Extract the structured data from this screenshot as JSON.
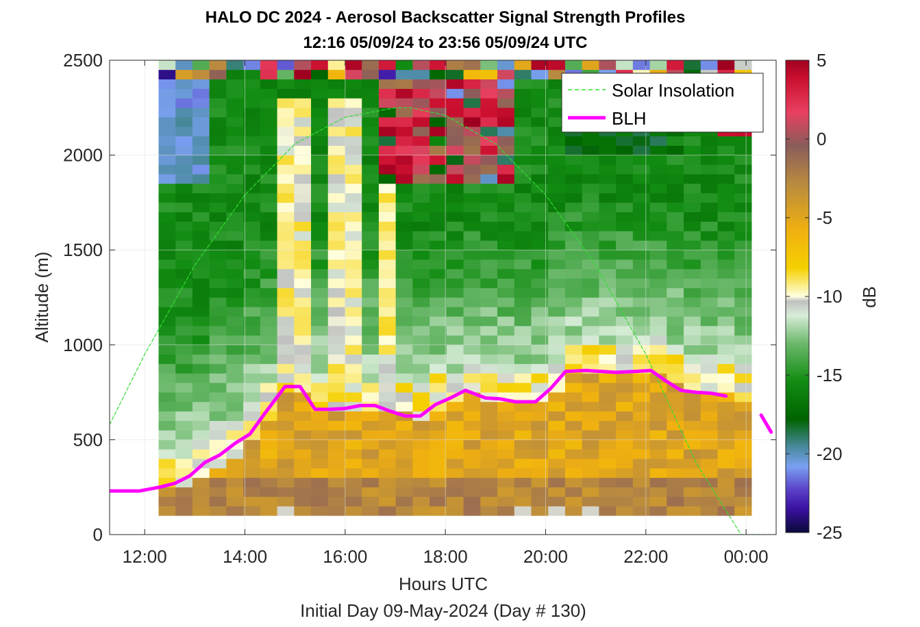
{
  "chart_data": {
    "type": "heatmap",
    "title": "HALO DC 2024 - Aerosol Backscatter Signal Strength Profiles",
    "subtitle": "12:16 05/09/24 to 23:56 05/09/24  UTC",
    "xlabel": "Hours UTC",
    "xlabel_note": "Initial Day 09-May-2024 (Day # 130)",
    "ylabel": "Altitude (m)",
    "colorbar_label": "dB",
    "x_ticks": [
      "12:00",
      "14:00",
      "16:00",
      "18:00",
      "20:00",
      "22:00",
      "00:00"
    ],
    "x_tick_hours": [
      12,
      14,
      16,
      18,
      20,
      22,
      24
    ],
    "y_ticks": [
      "0",
      "500",
      "1000",
      "1500",
      "2000",
      "2500"
    ],
    "y_tick_values": [
      0,
      500,
      1000,
      1500,
      2000,
      2500
    ],
    "colorbar_ticks": [
      "5",
      "0",
      "-5",
      "-10",
      "-15",
      "-20",
      "-25"
    ],
    "colorbar_tick_values": [
      5,
      0,
      -5,
      -10,
      -15,
      -20,
      -25
    ],
    "xlim": [
      11.3,
      24.6
    ],
    "ylim": [
      0,
      2500
    ],
    "clim": [
      -25,
      5
    ],
    "grid": true,
    "legend_position": "top-right",
    "heatmap": {
      "start_hour": 12.28,
      "hour_step": 0.338,
      "altitude_bottom": 100,
      "altitude_step": 50,
      "columns": 35,
      "rows": 48
    },
    "series": [
      {
        "name": "Solar Insolation",
        "style": "dashed",
        "color": "#33dd33",
        "x": [
          11.3,
          12.0,
          13.0,
          14.0,
          15.0,
          16.0,
          17.0,
          17.3,
          18.0,
          19.0,
          20.0,
          21.0,
          22.0,
          23.0,
          23.9,
          24.6
        ],
        "y": [
          580,
          950,
          1420,
          1790,
          2060,
          2200,
          2250,
          2250,
          2210,
          2060,
          1790,
          1420,
          950,
          380,
          0,
          0
        ]
      },
      {
        "name": "BLH",
        "style": "solid",
        "color": "#ff00ff",
        "x": [
          11.3,
          11.9,
          12.3,
          12.6,
          12.9,
          13.2,
          13.5,
          13.8,
          14.1,
          14.4,
          14.8,
          15.1,
          15.4,
          15.7,
          16.0,
          16.3,
          16.6,
          16.9,
          17.2,
          17.5,
          17.8,
          18.1,
          18.4,
          18.8,
          19.1,
          19.4,
          19.8,
          20.1,
          20.4,
          20.8,
          21.1,
          21.4,
          21.8,
          22.1,
          22.4,
          22.7,
          23.0,
          23.3,
          23.6,
          23.9,
          24.3,
          24.5
        ],
        "y": [
          230,
          230,
          250,
          270,
          310,
          380,
          420,
          480,
          530,
          640,
          780,
          780,
          660,
          660,
          665,
          680,
          680,
          650,
          625,
          625,
          685,
          720,
          760,
          720,
          715,
          700,
          700,
          770,
          860,
          865,
          860,
          855,
          860,
          865,
          810,
          760,
          750,
          745,
          730,
          null,
          630,
          540
        ]
      }
    ]
  }
}
